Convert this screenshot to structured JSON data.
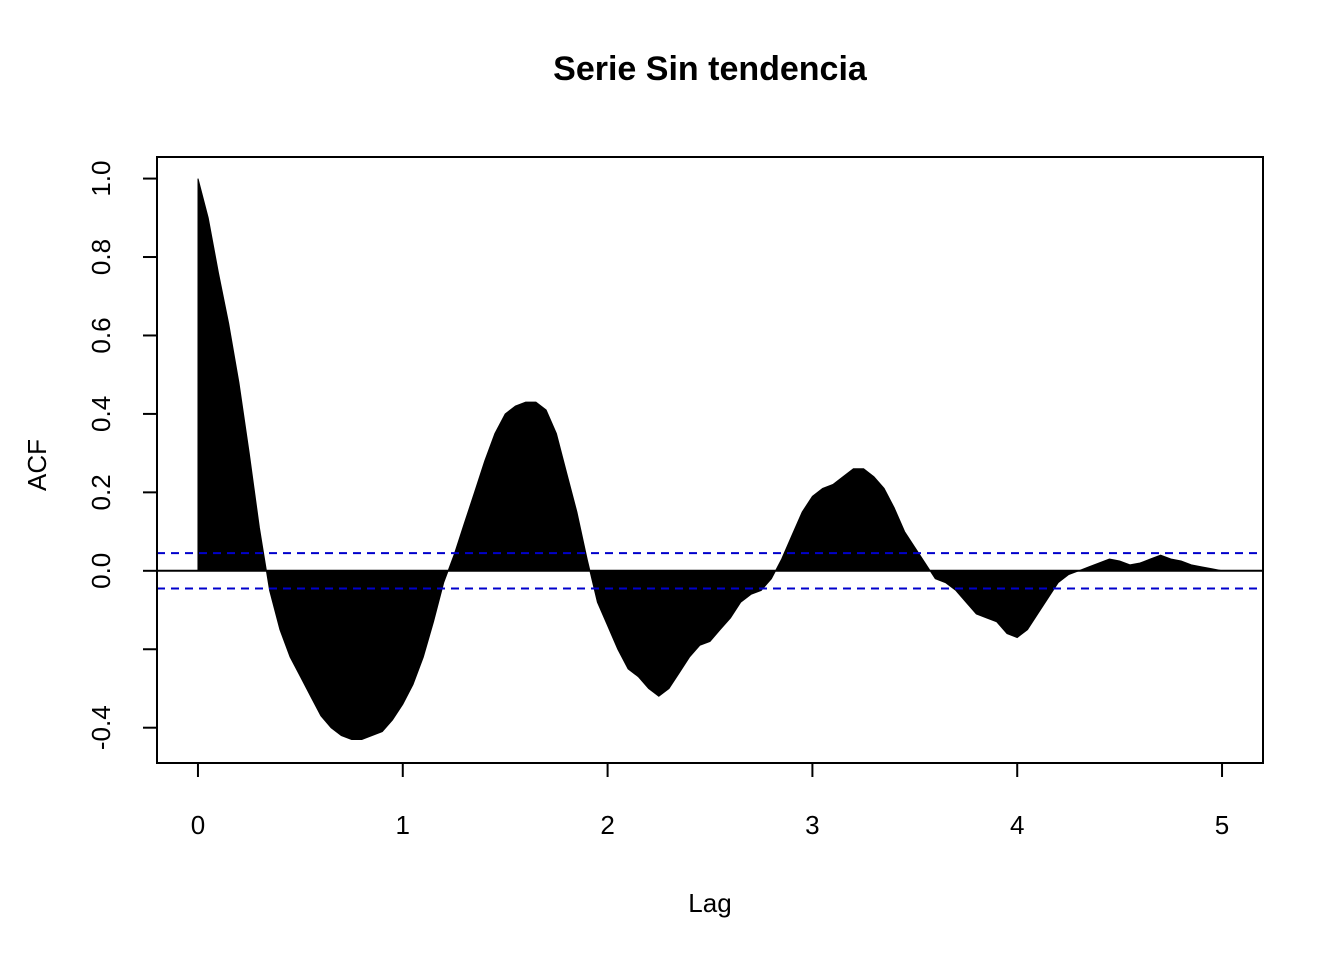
{
  "chart_data": {
    "type": "area",
    "title": "Serie Sin tendencia",
    "xlabel": "Lag",
    "ylabel": "ACF",
    "xlim": [
      -0.2,
      5.2
    ],
    "ylim": [
      -0.49,
      1.055
    ],
    "x_ticks": [
      0,
      1,
      2,
      3,
      4,
      5
    ],
    "x_tick_labels": [
      "0",
      "1",
      "2",
      "3",
      "4",
      "5"
    ],
    "y_ticks": [
      -0.4,
      -0.2,
      0.0,
      0.2,
      0.4,
      0.6,
      0.8,
      1.0
    ],
    "y_tick_labels": [
      "-0.4",
      "",
      "0.0",
      "0.2",
      "0.4",
      "0.6",
      "0.8",
      "1.0"
    ],
    "confidence_bounds": [
      0.045,
      -0.045
    ],
    "confidence_line_color": "#0000cc",
    "fill_color": "#000000",
    "grid": false,
    "series": [
      {
        "x": [
          0,
          0.05,
          0.1,
          0.15,
          0.2,
          0.25,
          0.3,
          0.35,
          0.4,
          0.45,
          0.5,
          0.55,
          0.6,
          0.65,
          0.7,
          0.75,
          0.8,
          0.85,
          0.9,
          0.95,
          1.0,
          1.05,
          1.1,
          1.15,
          1.2,
          1.25,
          1.3,
          1.35,
          1.4,
          1.45,
          1.5,
          1.55,
          1.6,
          1.65,
          1.7,
          1.75,
          1.8,
          1.85,
          1.9,
          1.95,
          2.0,
          2.05,
          2.1,
          2.15,
          2.2,
          2.25,
          2.3,
          2.35,
          2.4,
          2.45,
          2.5,
          2.55,
          2.6,
          2.65,
          2.7,
          2.75,
          2.8,
          2.85,
          2.9,
          2.95,
          3.0,
          3.05,
          3.1,
          3.15,
          3.2,
          3.25,
          3.3,
          3.35,
          3.4,
          3.45,
          3.5,
          3.55,
          3.6,
          3.65,
          3.7,
          3.75,
          3.8,
          3.85,
          3.9,
          3.95,
          4.0,
          4.05,
          4.1,
          4.15,
          4.2,
          4.25,
          4.3,
          4.35,
          4.4,
          4.45,
          4.5,
          4.55,
          4.6,
          4.65,
          4.7,
          4.75,
          4.8,
          4.85,
          4.9,
          4.95,
          5.0
        ],
        "values": [
          1.0,
          0.9,
          0.76,
          0.63,
          0.48,
          0.3,
          0.11,
          -0.05,
          -0.15,
          -0.22,
          -0.27,
          -0.32,
          -0.37,
          -0.4,
          -0.42,
          -0.43,
          -0.43,
          -0.42,
          -0.41,
          -0.38,
          -0.34,
          -0.29,
          -0.22,
          -0.13,
          -0.03,
          0.04,
          0.12,
          0.2,
          0.28,
          0.35,
          0.4,
          0.42,
          0.43,
          0.43,
          0.41,
          0.35,
          0.25,
          0.15,
          0.03,
          -0.08,
          -0.14,
          -0.2,
          -0.25,
          -0.27,
          -0.3,
          -0.32,
          -0.3,
          -0.26,
          -0.22,
          -0.19,
          -0.18,
          -0.15,
          -0.12,
          -0.08,
          -0.06,
          -0.05,
          -0.02,
          0.03,
          0.09,
          0.15,
          0.19,
          0.21,
          0.22,
          0.24,
          0.26,
          0.26,
          0.24,
          0.21,
          0.16,
          0.1,
          0.06,
          0.02,
          -0.02,
          -0.03,
          -0.05,
          -0.08,
          -0.11,
          -0.12,
          -0.13,
          -0.16,
          -0.17,
          -0.15,
          -0.11,
          -0.07,
          -0.03,
          -0.01,
          0.0,
          0.01,
          0.02,
          0.03,
          0.025,
          0.015,
          0.02,
          0.03,
          0.04,
          0.03,
          0.025,
          0.015,
          0.01,
          0.005,
          0.0
        ]
      }
    ]
  }
}
